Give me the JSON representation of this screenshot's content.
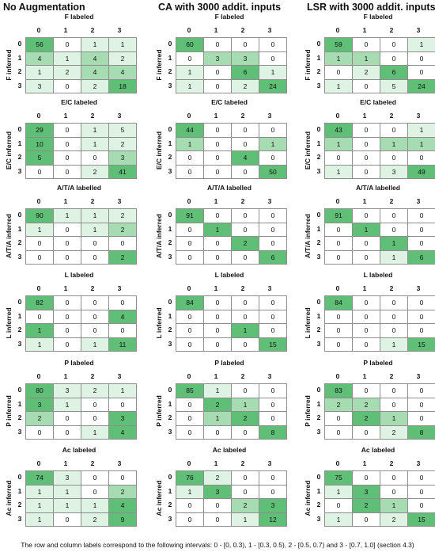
{
  "headers": [
    "No Augmentation",
    "CA with 3000 addit. inputs",
    "LSR with 3000 addit. inputs"
  ],
  "footer": "The row and column labels correspond to the following intervals:  0 - [0, 0.3), 1 - [0.3, 0.5), 2 - [0.5, 0.7) and 3 - [0.7, 1.0] (section 4.3)",
  "index_labels": [
    "0",
    "1",
    "2",
    "3"
  ],
  "colors": {
    "strong": "#5fbf77",
    "medium": "#a7dcb2",
    "light": "#dff3e4",
    "none": "#ffffff",
    "border": "#8e8e8e"
  },
  "chart_data": {
    "type": "heatmap",
    "row_categories": [
      "0",
      "1",
      "2",
      "3"
    ],
    "col_categories": [
      "0",
      "1",
      "2",
      "3"
    ],
    "categories": [
      {
        "title": "F labeled",
        "ylabel": "F inferred",
        "matrices": [
          [
            [
              56,
              0,
              1,
              1
            ],
            [
              4,
              1,
              4,
              2
            ],
            [
              1,
              2,
              4,
              4
            ],
            [
              3,
              0,
              2,
              18
            ]
          ],
          [
            [
              60,
              0,
              0,
              0
            ],
            [
              0,
              3,
              3,
              0
            ],
            [
              1,
              0,
              6,
              1
            ],
            [
              1,
              0,
              2,
              24
            ]
          ],
          [
            [
              59,
              0,
              0,
              1
            ],
            [
              1,
              1,
              0,
              0
            ],
            [
              0,
              2,
              6,
              0
            ],
            [
              1,
              0,
              5,
              24
            ]
          ]
        ]
      },
      {
        "title": "E/C labeled",
        "ylabel": "E/C inferred",
        "matrices": [
          [
            [
              29,
              0,
              1,
              5
            ],
            [
              10,
              0,
              1,
              2
            ],
            [
              5,
              0,
              0,
              3
            ],
            [
              0,
              0,
              2,
              41
            ]
          ],
          [
            [
              44,
              0,
              0,
              0
            ],
            [
              1,
              0,
              0,
              1
            ],
            [
              0,
              0,
              4,
              0
            ],
            [
              0,
              0,
              0,
              50
            ]
          ],
          [
            [
              43,
              0,
              0,
              1
            ],
            [
              1,
              0,
              1,
              1
            ],
            [
              0,
              0,
              0,
              0
            ],
            [
              1,
              0,
              3,
              49
            ]
          ]
        ]
      },
      {
        "title": "A/T/A labelled",
        "ylabel": "A/T/A inferred",
        "matrices": [
          [
            [
              90,
              1,
              1,
              2
            ],
            [
              1,
              0,
              1,
              2
            ],
            [
              0,
              0,
              0,
              0
            ],
            [
              0,
              0,
              0,
              2
            ]
          ],
          [
            [
              91,
              0,
              0,
              0
            ],
            [
              0,
              1,
              0,
              0
            ],
            [
              0,
              0,
              2,
              0
            ],
            [
              0,
              0,
              0,
              6
            ]
          ],
          [
            [
              91,
              0,
              0,
              0
            ],
            [
              0,
              1,
              0,
              0
            ],
            [
              0,
              0,
              1,
              0
            ],
            [
              0,
              0,
              1,
              6
            ]
          ]
        ]
      },
      {
        "title": "L labeled",
        "ylabel": "L inferred",
        "matrices": [
          [
            [
              82,
              0,
              0,
              0
            ],
            [
              0,
              0,
              0,
              4
            ],
            [
              1,
              0,
              0,
              0
            ],
            [
              1,
              0,
              1,
              11
            ]
          ],
          [
            [
              84,
              0,
              0,
              0
            ],
            [
              0,
              0,
              0,
              0
            ],
            [
              0,
              0,
              1,
              0
            ],
            [
              0,
              0,
              0,
              15
            ]
          ],
          [
            [
              84,
              0,
              0,
              0
            ],
            [
              0,
              0,
              0,
              0
            ],
            [
              0,
              0,
              0,
              0
            ],
            [
              0,
              0,
              1,
              15
            ]
          ]
        ]
      },
      {
        "title": "P labeled",
        "ylabel": "P inferred",
        "matrices": [
          [
            [
              80,
              3,
              2,
              1
            ],
            [
              3,
              1,
              0,
              0
            ],
            [
              2,
              0,
              0,
              3
            ],
            [
              0,
              0,
              1,
              4
            ]
          ],
          [
            [
              85,
              1,
              0,
              0
            ],
            [
              0,
              2,
              1,
              0
            ],
            [
              0,
              1,
              2,
              0
            ],
            [
              0,
              0,
              0,
              8
            ]
          ],
          [
            [
              83,
              0,
              0,
              0
            ],
            [
              2,
              2,
              0,
              0
            ],
            [
              0,
              2,
              1,
              0
            ],
            [
              0,
              0,
              2,
              8
            ]
          ]
        ]
      },
      {
        "title": "Ac labeled",
        "ylabel": "Ac inferred",
        "matrices": [
          [
            [
              74,
              3,
              0,
              0
            ],
            [
              1,
              1,
              0,
              2
            ],
            [
              1,
              1,
              1,
              4
            ],
            [
              1,
              0,
              2,
              9
            ]
          ],
          [
            [
              76,
              2,
              0,
              0
            ],
            [
              1,
              3,
              0,
              0
            ],
            [
              0,
              0,
              2,
              3
            ],
            [
              0,
              0,
              1,
              12
            ]
          ],
          [
            [
              75,
              0,
              0,
              0
            ],
            [
              1,
              3,
              0,
              0
            ],
            [
              0,
              2,
              1,
              0
            ],
            [
              1,
              0,
              2,
              15
            ]
          ]
        ]
      }
    ]
  }
}
